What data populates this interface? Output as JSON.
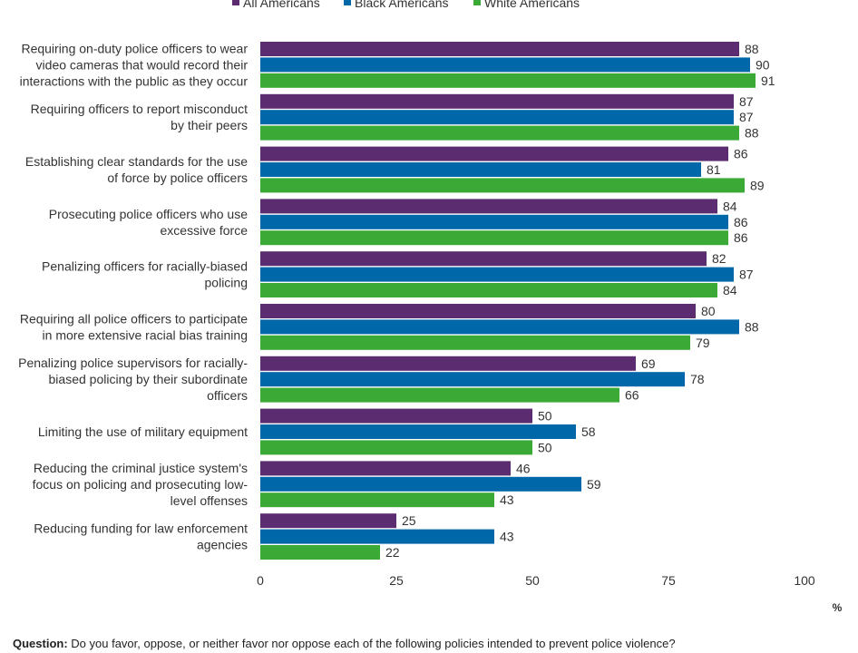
{
  "chart_data": {
    "type": "bar",
    "orientation": "horizontal",
    "categories": [
      [
        "Requiring on-duty police officers to wear",
        "video cameras that would record their",
        "interactions with the public as they occur"
      ],
      [
        "Requiring officers to report misconduct",
        "by their peers"
      ],
      [
        "Establishing clear standards for the use",
        "of force by police officers"
      ],
      [
        "Prosecuting police officers who use",
        "excessive force"
      ],
      [
        "Penalizing officers for racially-biased",
        "policing"
      ],
      [
        "Requiring all police officers to participate",
        "in more extensive racial bias training"
      ],
      [
        "Penalizing police supervisors for racially-",
        "biased policing by their subordinate",
        "officers"
      ],
      [
        "Limiting the use of military equipment"
      ],
      [
        "Reducing the criminal justice system's",
        "focus on policing and prosecuting low-",
        "level offenses"
      ],
      [
        "Reducing funding for law enforcement",
        "agencies"
      ]
    ],
    "series": [
      {
        "name": "All Americans",
        "color": "#5b2c6f",
        "values": [
          88,
          87,
          86,
          84,
          82,
          80,
          69,
          50,
          46,
          25
        ]
      },
      {
        "name": "Black Americans",
        "color": "#0068a8",
        "values": [
          90,
          87,
          81,
          86,
          87,
          88,
          78,
          58,
          59,
          43
        ]
      },
      {
        "name": "White Americans",
        "color": "#3aa935",
        "values": [
          91,
          88,
          89,
          86,
          84,
          79,
          66,
          50,
          43,
          22
        ]
      }
    ],
    "xlim": [
      0,
      100
    ],
    "xticks": [
      0,
      25,
      50,
      75,
      100
    ],
    "unit_label": "%",
    "legend_position": "top"
  },
  "footer": {
    "question_lead": "Question:",
    "question_text": " Do you favor, oppose, or neither favor nor oppose each of the following policies  intended to prevent police violence?"
  }
}
